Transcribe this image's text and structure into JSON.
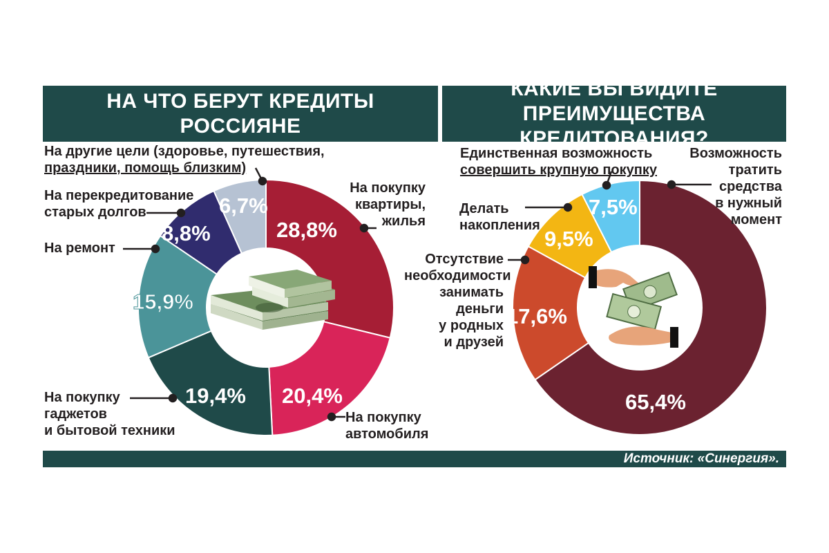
{
  "colors": {
    "header_bg": "#1f4a49",
    "left_slices": [
      "#a61e35",
      "#d92459",
      "#1f4a49",
      "#4b9499",
      "#302c6e",
      "#b6c2d3"
    ],
    "right_slices": [
      "#6b2230",
      "#cc4a2c",
      "#f3b613",
      "#62c8f0"
    ]
  },
  "left": {
    "title_line1": "НА ЧТО БЕРУТ КРЕДИТЫ",
    "title_line2": "РОССИЯНЕ",
    "labels": {
      "apartment": [
        "На покупку",
        "квартиры,",
        "жилья"
      ],
      "car": [
        "На покупку",
        "автомобиля"
      ],
      "gadgets": [
        "На покупку",
        "гаджетов",
        "и бытовой техники"
      ],
      "repair": [
        "На ремонт"
      ],
      "refinance": [
        "На перекредитование",
        "старых долгов"
      ],
      "other": [
        "На другие цели (здоровье, путешествия,",
        "праздники, помощь близким)"
      ]
    },
    "icon": "money-stack-icon"
  },
  "right": {
    "title_line1": "КАКИЕ ВЫ ВИДИТЕ",
    "title_line2": "ПРЕИМУЩЕСТВА КРЕДИТОВАНИЯ?",
    "labels": {
      "spend": [
        "Возможность",
        "тратить",
        "средства",
        "в нужный",
        "момент"
      ],
      "nonborrow": [
        "Отсутствие",
        "необходимости",
        "занимать",
        "деньги",
        "у родных",
        "и друзей"
      ],
      "save": [
        "Делать",
        "накопления"
      ],
      "big": [
        "Единственная возможность",
        "совершить крупную покупку"
      ]
    },
    "icon": "hands-money-icon"
  },
  "source": "Источник: «Синергия».",
  "chart_data": [
    {
      "type": "pie",
      "title": "НА ЧТО БЕРУТ КРЕДИТЫ РОССИЯНЕ",
      "categories": [
        "На покупку квартиры, жилья",
        "На покупку автомобиля",
        "На покупку гаджетов и бытовой техники",
        "На ремонт",
        "На перекредитование старых долгов",
        "На другие цели (здоровье, путешествия, праздники, помощь близким)"
      ],
      "values": [
        28.8,
        20.4,
        19.4,
        15.9,
        8.8,
        6.7
      ],
      "value_labels": [
        "28,8%",
        "20,4%",
        "19,4%",
        "15,9%",
        "8,8%",
        "6,7%"
      ]
    },
    {
      "type": "pie",
      "title": "КАКИЕ ВЫ ВИДИТЕ ПРЕИМУЩЕСТВА КРЕДИТОВАНИЯ?",
      "categories": [
        "Возможность тратить средства в нужный момент",
        "Отсутствие необходимости занимать деньги у родных и друзей",
        "Делать накопления",
        "Единственная возможность совершить крупную покупку"
      ],
      "values": [
        65.4,
        17.6,
        9.5,
        7.5
      ],
      "value_labels": [
        "65,4%",
        "17,6%",
        "9,5%",
        "7,5%"
      ]
    }
  ]
}
